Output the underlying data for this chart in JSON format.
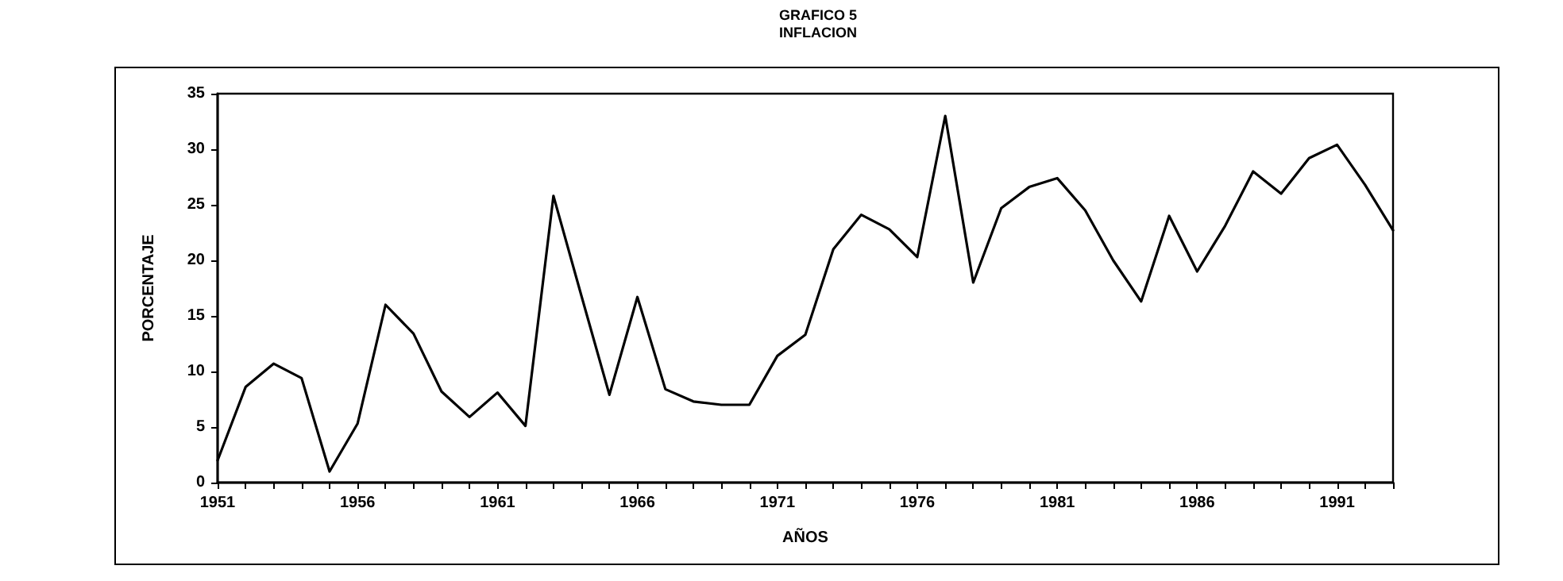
{
  "chart_data": {
    "type": "line",
    "title": "GRAFICO 5",
    "subtitle": "INFLACION",
    "xlabel": "AÑOS",
    "ylabel": "PORCENTAJE",
    "x": [
      1951,
      1952,
      1953,
      1954,
      1955,
      1956,
      1957,
      1958,
      1959,
      1960,
      1961,
      1962,
      1963,
      1964,
      1965,
      1966,
      1967,
      1968,
      1969,
      1970,
      1971,
      1972,
      1973,
      1974,
      1975,
      1976,
      1977,
      1978,
      1979,
      1980,
      1981,
      1982,
      1983,
      1984,
      1985,
      1986,
      1987,
      1988,
      1989,
      1990,
      1991,
      1992,
      1993
    ],
    "series": [
      {
        "color": "#000000",
        "values": [
          2.0,
          8.6,
          10.7,
          9.4,
          1.0,
          5.3,
          16.0,
          13.4,
          8.2,
          5.9,
          8.1,
          5.1,
          25.8,
          16.8,
          7.9,
          16.7,
          8.4,
          7.3,
          7.0,
          7.0,
          11.4,
          13.3,
          21.0,
          24.1,
          22.8,
          20.3,
          33.0,
          18.0,
          24.7,
          26.6,
          27.4,
          24.5,
          20.0,
          16.3,
          24.0,
          19.0,
          23.1,
          28.0,
          26.0,
          29.2,
          30.4,
          26.8,
          22.7
        ]
      }
    ],
    "xlim": [
      1951,
      1993
    ],
    "xticks": [
      1951,
      {
        "value": 1952,
        "label": null
      },
      {
        "value": 1953,
        "label": null
      },
      {
        "value": 1954,
        "label": null
      },
      {
        "value": 1955,
        "label": null
      },
      1956,
      {
        "value": 1957,
        "label": null
      },
      {
        "value": 1958,
        "label": null
      },
      {
        "value": 1959,
        "label": null
      },
      {
        "value": 1960,
        "label": null
      },
      1961,
      {
        "value": 1962,
        "label": null
      },
      {
        "value": 1963,
        "label": null
      },
      {
        "value": 1964,
        "label": null
      },
      {
        "value": 1965,
        "label": null
      },
      1966,
      {
        "value": 1967,
        "label": null
      },
      {
        "value": 1968,
        "label": null
      },
      {
        "value": 1969,
        "label": null
      },
      {
        "value": 1970,
        "label": null
      },
      1971,
      {
        "value": 1972,
        "label": null
      },
      {
        "value": 1973,
        "label": null
      },
      {
        "value": 1974,
        "label": null
      },
      {
        "value": 1975,
        "label": null
      },
      1976,
      {
        "value": 1977,
        "label": null
      },
      {
        "value": 1978,
        "label": null
      },
      {
        "value": 1979,
        "label": null
      },
      {
        "value": 1980,
        "label": null
      },
      1981,
      {
        "value": 1982,
        "label": null
      },
      {
        "value": 1983,
        "label": null
      },
      {
        "value": 1984,
        "label": null
      },
      {
        "value": 1985,
        "label": null
      },
      1986,
      {
        "value": 1987,
        "label": null
      },
      {
        "value": 1988,
        "label": null
      },
      {
        "value": 1989,
        "label": null
      },
      {
        "value": 1990,
        "label": null
      },
      1991,
      {
        "value": 1992,
        "label": null
      },
      {
        "value": 1993,
        "label": null
      }
    ],
    "ylim": [
      0,
      35
    ],
    "yticks": [
      0,
      5,
      10,
      15,
      20,
      25,
      30,
      35
    ],
    "grid": false,
    "marker": "none",
    "line_style": "solid"
  }
}
